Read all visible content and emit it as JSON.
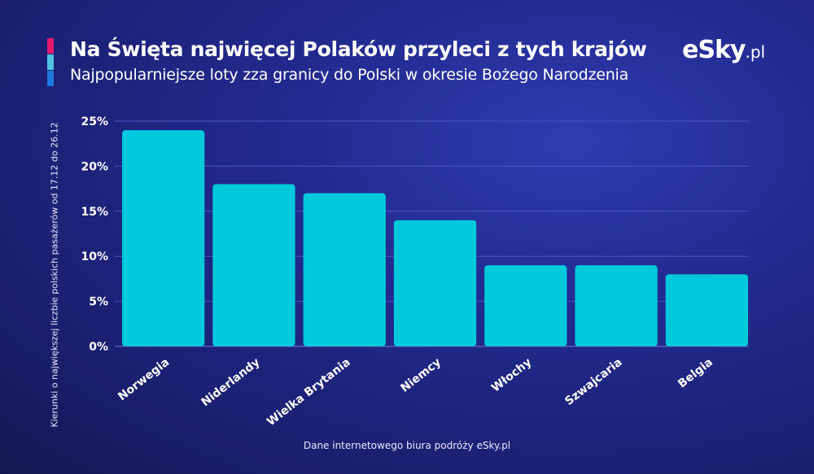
{
  "header": {
    "title": "Na Święta najwięcej Polaków przyleci z tych krajów",
    "subtitle": "Najpopularniejsze loty zza granicy do Polski w okresie Bożego Narodzenia",
    "logo_main": "eSky",
    "logo_tld": ".pl"
  },
  "footer": {
    "source": "Dane internetowego biura podróży eSky.pl"
  },
  "colors": {
    "bar": "#00c9dc",
    "grid": "#4a56c4",
    "accent_pink": "#e6176f",
    "accent_cyan": "#4fc3e0",
    "accent_blue": "#1f78e0"
  },
  "chart_data": {
    "type": "bar",
    "title": "Na Święta najwięcej Polaków przyleci z tych krajów",
    "subtitle": "Najpopularniejsze loty zza granicy do Polski w okresie Bożego Narodzenia",
    "xlabel": "",
    "ylabel": "Kierunki o największej liczbie polskich pasażerów od 17.12 do 26.12",
    "categories": [
      "Norwegia",
      "Niderlandy",
      "Wielka Brytania",
      "Niemcy",
      "Włochy",
      "Szwajcaria",
      "Belgia"
    ],
    "values": [
      24,
      18,
      17,
      14,
      9,
      9,
      8
    ],
    "ylim": [
      0,
      25
    ],
    "yticks": [
      0,
      5,
      10,
      15,
      20,
      25
    ],
    "ytick_labels": [
      "0%",
      "5%",
      "10%",
      "15%",
      "20%",
      "25%"
    ],
    "grid": true,
    "legend": "none"
  }
}
